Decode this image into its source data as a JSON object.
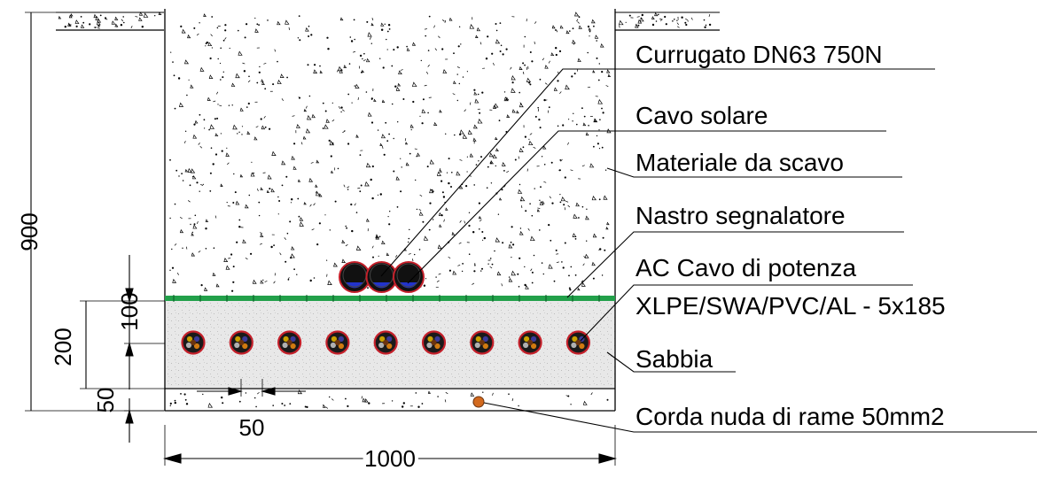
{
  "labels": {
    "corrugated": "Currugato DN63 750N",
    "solar_cable": "Cavo solare",
    "excavation": "Materiale da scavo",
    "warning_tape": "Nastro segnalatore",
    "ac_cable_1": "AC Cavo di potenza",
    "ac_cable_2": "XLPE/SWA/PVC/AL - 5x185",
    "sand": "Sabbia",
    "copper": "Corda nuda di rame 50mm2"
  },
  "dimensions": {
    "total_depth": "900",
    "sand_bed": "200",
    "tape_offset": "100",
    "bottom_layer": "50",
    "cable_spacing": "50",
    "trench_width": "1000"
  },
  "counts": {
    "ac_cables": 9,
    "corrugated_ducts": 3
  },
  "colors": {
    "tape": "#22a04a",
    "cable_ring": "#c4202a",
    "duct_blue": "#2233cc",
    "copper": "#d2691e"
  }
}
